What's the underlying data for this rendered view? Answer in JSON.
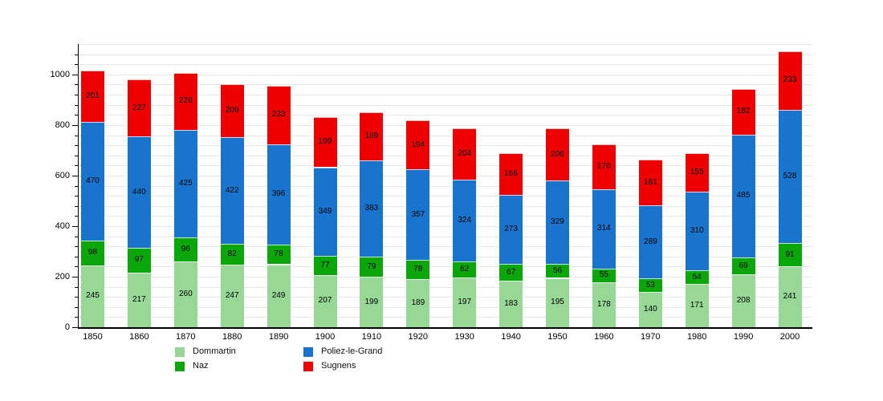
{
  "chart_data": {
    "type": "bar",
    "stacked": true,
    "title": "",
    "xlabel": "",
    "ylabel": "",
    "background": "#ffffff",
    "categories": [
      "1850",
      "1860",
      "1870",
      "1880",
      "1890",
      "1900",
      "1910",
      "1920",
      "1930",
      "1940",
      "1950",
      "1960",
      "1970",
      "1980",
      "1990",
      "2000"
    ],
    "series": [
      {
        "name": "Dommartin",
        "color": "#97d897",
        "values": [
          245,
          217,
          260,
          247,
          249,
          207,
          199,
          189,
          197,
          183,
          195,
          178,
          140,
          171,
          208,
          241
        ]
      },
      {
        "name": "Naz",
        "color": "#0aa60a",
        "values": [
          98,
          97,
          96,
          82,
          78,
          77,
          79,
          78,
          62,
          67,
          56,
          55,
          53,
          54,
          69,
          91
        ]
      },
      {
        "name": "Poliez-le-Grand",
        "color": "#1874cd",
        "values": [
          470,
          440,
          425,
          422,
          396,
          349,
          383,
          357,
          324,
          273,
          329,
          314,
          289,
          310,
          485,
          528
        ]
      },
      {
        "name": "Sugnens",
        "color": "#ee0000",
        "values": [
          201,
          227,
          226,
          209,
          233,
          199,
          189,
          194,
          204,
          166,
          206,
          176,
          181,
          155,
          182,
          233
        ]
      }
    ],
    "ylim": [
      0,
      1120
    ],
    "yticks": [
      0,
      200,
      400,
      600,
      800,
      1000
    ],
    "minor_tick_step": 40,
    "grid_step": 40,
    "grid": true,
    "axis_color": "#000000",
    "grid_color": "#e8e8e8",
    "legend_position": "bottom",
    "legend_columns": [
      [
        "Dommartin",
        "Naz"
      ],
      [
        "Poliez-le-Grand",
        "Sugnens"
      ]
    ]
  }
}
